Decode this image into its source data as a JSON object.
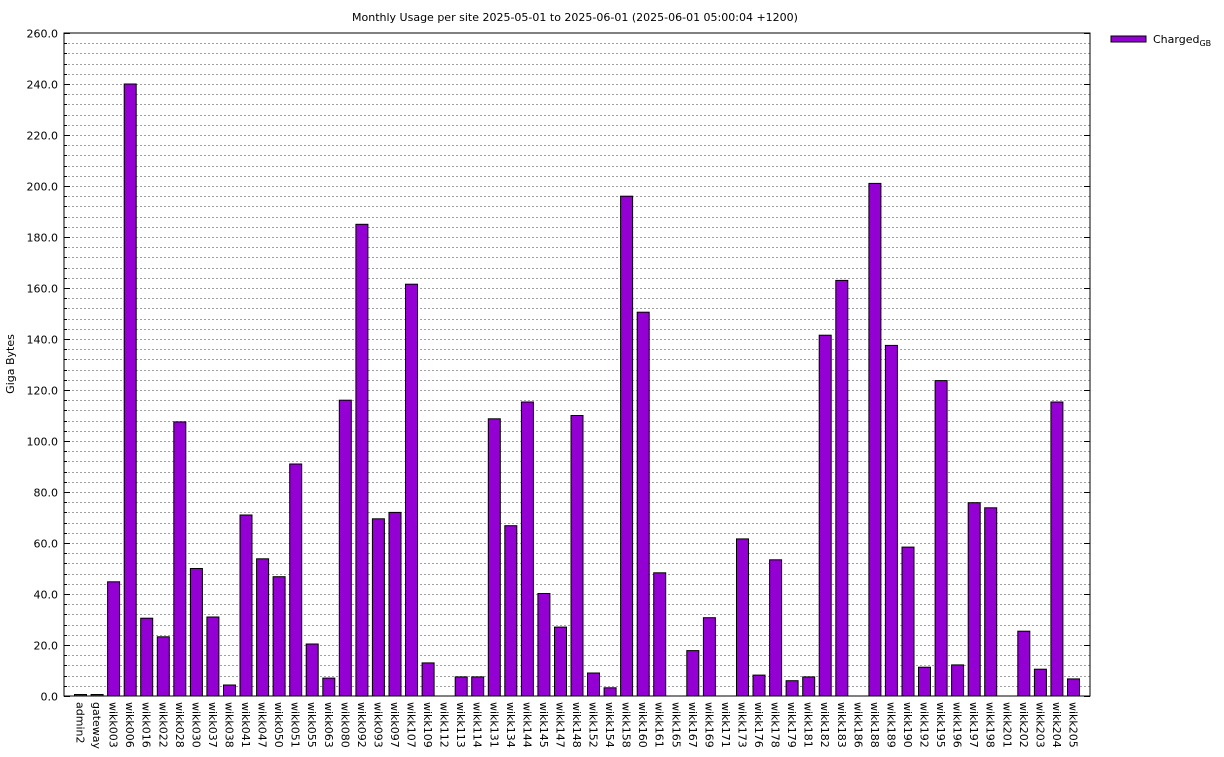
{
  "chart_data": {
    "type": "bar",
    "title": "Monthly Usage per site 2025-05-01 to 2025-06-01 (2025-06-01 05:00:04 +1200)",
    "ylabel": "Giga Bytes",
    "xlabel": "",
    "ylim": [
      0,
      260
    ],
    "y_major_step": 20,
    "y_minor_step": 4,
    "y_tick_labels": [
      "0.0",
      "20.0",
      "40.0",
      "60.0",
      "80.0",
      "100.0",
      "120.0",
      "140.0",
      "160.0",
      "180.0",
      "200.0",
      "220.0",
      "240.0",
      "260.0"
    ],
    "grid": true,
    "legend_position": "top-right",
    "legend": {
      "main": "Charged",
      "sub": "GB"
    },
    "bar_color": "#9400d3",
    "categories": [
      "admin2",
      "gateway",
      "wikk003",
      "wikk006",
      "wikk016",
      "wikk022",
      "wikk028",
      "wikk030",
      "wikk037",
      "wikk038",
      "wikk041",
      "wikk047",
      "wikk050",
      "wikk051",
      "wikk055",
      "wikk063",
      "wikk080",
      "wikk092",
      "wikk093",
      "wikk097",
      "wikk107",
      "wikk109",
      "wikk112",
      "wikk113",
      "wikk114",
      "wikk131",
      "wikk134",
      "wikk144",
      "wikk145",
      "wikk147",
      "wikk148",
      "wikk152",
      "wikk154",
      "wikk158",
      "wikk160",
      "wikk161",
      "wikk165",
      "wikk167",
      "wikk169",
      "wikk171",
      "wikk173",
      "wikk176",
      "wikk178",
      "wikk179",
      "wikk181",
      "wikk182",
      "wikk183",
      "wikk186",
      "wikk188",
      "wikk189",
      "wikk190",
      "wikk192",
      "wikk195",
      "wikk196",
      "wikk197",
      "wikk198",
      "wikk201",
      "wikk202",
      "wikk203",
      "wikk204",
      "wikk205"
    ],
    "series": [
      {
        "name": "ChargedGB",
        "values": [
          0.6,
          0.6,
          44.8,
          240.0,
          30.5,
          23.2,
          107.5,
          50.0,
          31.0,
          4.3,
          71.0,
          53.8,
          46.8,
          91.0,
          20.4,
          7.0,
          116.0,
          185.0,
          69.5,
          72.0,
          161.5,
          13.0,
          0,
          7.5,
          7.5,
          108.7,
          66.8,
          115.3,
          40.2,
          27.0,
          110.0,
          9.0,
          3.2,
          196.0,
          150.5,
          48.3,
          0,
          17.8,
          30.7,
          0,
          61.6,
          8.2,
          53.4,
          6.0,
          7.5,
          141.5,
          163.0,
          0,
          201.0,
          137.5,
          58.4,
          11.3,
          123.7,
          12.2,
          75.8,
          73.8,
          0,
          25.4,
          10.5,
          115.3,
          6.7
        ]
      }
    ]
  }
}
